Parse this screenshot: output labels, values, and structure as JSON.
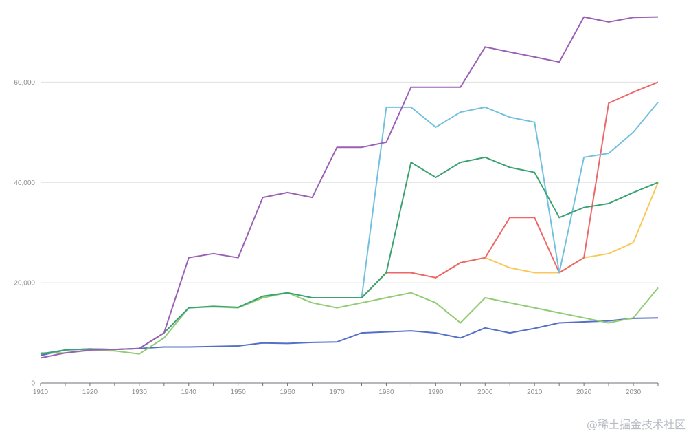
{
  "chart_data": {
    "type": "line",
    "title": "",
    "xlabel": "",
    "ylabel": "",
    "xlim": [
      1910,
      2035
    ],
    "ylim": [
      0,
      75000
    ],
    "grid": true,
    "legend": "none",
    "x_ticks": [
      1910,
      1920,
      1930,
      1940,
      1950,
      1960,
      1970,
      1980,
      1990,
      2000,
      2010,
      2020,
      2030
    ],
    "y_ticks": [
      0,
      20000,
      40000,
      60000
    ],
    "x_tick_labels": [
      "1910",
      "1920",
      "1930",
      "1940",
      "1950",
      "1960",
      "1970",
      "1980",
      "1990",
      "2000",
      "2010",
      "2020",
      "2030"
    ],
    "y_tick_labels": [
      "0",
      "20,000",
      "40,000",
      "60,000"
    ],
    "series": [
      {
        "color": "#5470c6",
        "points": [
          [
            1910,
            5500
          ],
          [
            1915,
            6600
          ],
          [
            1920,
            6800
          ],
          [
            1925,
            6700
          ],
          [
            1930,
            6900
          ],
          [
            1935,
            7200
          ],
          [
            1940,
            7200
          ],
          [
            1945,
            7300
          ],
          [
            1950,
            7400
          ],
          [
            1955,
            8000
          ],
          [
            1960,
            7900
          ],
          [
            1965,
            8100
          ],
          [
            1970,
            8200
          ],
          [
            1975,
            10000
          ],
          [
            1980,
            10200
          ],
          [
            1985,
            10400
          ],
          [
            1990,
            10000
          ],
          [
            1995,
            9000
          ],
          [
            2000,
            11000
          ],
          [
            2005,
            10000
          ],
          [
            2010,
            10900
          ],
          [
            2015,
            12000
          ],
          [
            2020,
            12200
          ],
          [
            2025,
            12400
          ],
          [
            2030,
            12900
          ],
          [
            2035,
            13000
          ]
        ]
      },
      {
        "color": "#91cc75",
        "points": [
          [
            1910,
            6000
          ],
          [
            1915,
            6000
          ],
          [
            1920,
            6500
          ],
          [
            1925,
            6400
          ],
          [
            1930,
            5800
          ],
          [
            1935,
            9000
          ],
          [
            1940,
            15000
          ],
          [
            1945,
            15200
          ],
          [
            1950,
            15000
          ],
          [
            1955,
            17000
          ],
          [
            1960,
            18000
          ],
          [
            1965,
            16000
          ],
          [
            1970,
            15000
          ],
          [
            1975,
            16000
          ],
          [
            1980,
            17000
          ],
          [
            1985,
            18000
          ],
          [
            1990,
            16000
          ],
          [
            1995,
            12000
          ],
          [
            2000,
            17000
          ],
          [
            2005,
            16000
          ],
          [
            2010,
            15000
          ],
          [
            2015,
            14000
          ],
          [
            2020,
            13000
          ],
          [
            2025,
            12000
          ],
          [
            2030,
            13000
          ],
          [
            2035,
            19000
          ]
        ]
      },
      {
        "color": "#fac858",
        "points": [
          [
            1975,
            17000
          ],
          [
            1980,
            22000
          ],
          [
            1985,
            22000
          ],
          [
            1990,
            21000
          ],
          [
            1995,
            24000
          ],
          [
            2000,
            25000
          ],
          [
            2005,
            23000
          ],
          [
            2010,
            22000
          ],
          [
            2015,
            22000
          ],
          [
            2020,
            25000
          ],
          [
            2025,
            25800
          ],
          [
            2030,
            28000
          ],
          [
            2035,
            40000
          ]
        ]
      },
      {
        "color": "#ee6666",
        "points": [
          [
            1975,
            17000
          ],
          [
            1980,
            22000
          ],
          [
            1985,
            22000
          ],
          [
            1990,
            21000
          ],
          [
            1995,
            24000
          ],
          [
            2000,
            25000
          ],
          [
            2005,
            33000
          ],
          [
            2010,
            33000
          ],
          [
            2015,
            22000
          ],
          [
            2020,
            25000
          ],
          [
            2025,
            55800
          ],
          [
            2030,
            58000
          ],
          [
            2035,
            60000
          ]
        ]
      },
      {
        "color": "#73c0de",
        "points": [
          [
            1975,
            17000
          ],
          [
            1980,
            55000
          ],
          [
            1985,
            55000
          ],
          [
            1990,
            51000
          ],
          [
            1995,
            54000
          ],
          [
            2000,
            55000
          ],
          [
            2005,
            53000
          ],
          [
            2010,
            52000
          ],
          [
            2015,
            22000
          ],
          [
            2020,
            45000
          ],
          [
            2025,
            45800
          ],
          [
            2030,
            50000
          ],
          [
            2035,
            56000
          ]
        ]
      },
      {
        "color": "#3ba272",
        "points": [
          [
            1910,
            5800
          ],
          [
            1915,
            6600
          ],
          [
            1920,
            6800
          ],
          [
            1925,
            6700
          ],
          [
            1930,
            6900
          ],
          [
            1935,
            10000
          ],
          [
            1940,
            15000
          ],
          [
            1945,
            15300
          ],
          [
            1950,
            15100
          ],
          [
            1955,
            17300
          ],
          [
            1960,
            18000
          ],
          [
            1965,
            17000
          ],
          [
            1970,
            17000
          ],
          [
            1975,
            17000
          ],
          [
            1980,
            22000
          ],
          [
            1985,
            44000
          ],
          [
            1990,
            41000
          ],
          [
            1995,
            44000
          ],
          [
            2000,
            45000
          ],
          [
            2005,
            43000
          ],
          [
            2010,
            42000
          ],
          [
            2015,
            33000
          ],
          [
            2020,
            35000
          ],
          [
            2025,
            35800
          ],
          [
            2030,
            38000
          ],
          [
            2035,
            40000
          ]
        ]
      },
      {
        "color": "#9a60b4",
        "points": [
          [
            1910,
            5000
          ],
          [
            1915,
            6000
          ],
          [
            1920,
            6600
          ],
          [
            1925,
            6700
          ],
          [
            1930,
            6900
          ],
          [
            1935,
            10000
          ],
          [
            1940,
            25000
          ],
          [
            1945,
            25800
          ],
          [
            1950,
            25000
          ],
          [
            1955,
            37000
          ],
          [
            1960,
            38000
          ],
          [
            1965,
            37000
          ],
          [
            1970,
            47000
          ],
          [
            1975,
            47000
          ],
          [
            1980,
            48000
          ],
          [
            1985,
            59000
          ],
          [
            1990,
            59000
          ],
          [
            1995,
            59000
          ],
          [
            2000,
            67000
          ],
          [
            2005,
            66000
          ],
          [
            2010,
            65000
          ],
          [
            2015,
            64000
          ],
          [
            2020,
            73000
          ],
          [
            2025,
            72000
          ],
          [
            2030,
            72900
          ],
          [
            2035,
            73000
          ]
        ]
      }
    ]
  },
  "watermark": "@稀土掘金技术社区"
}
